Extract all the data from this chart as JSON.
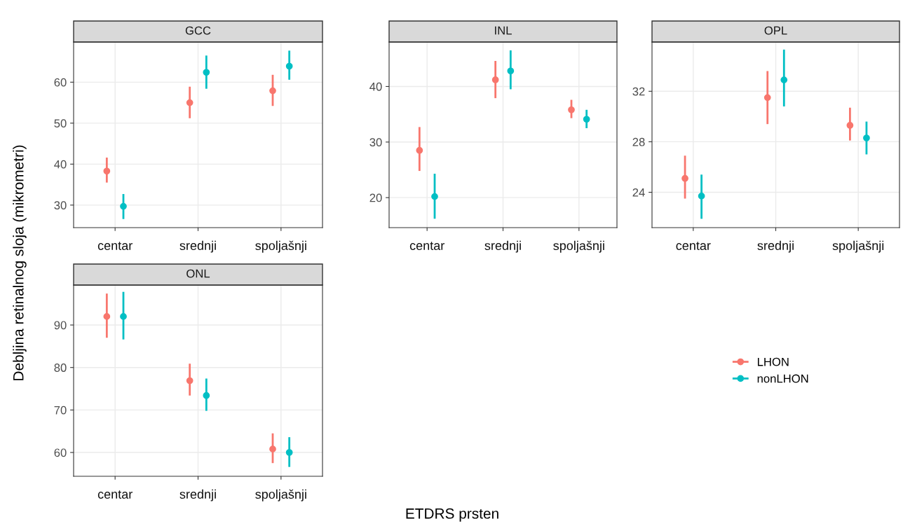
{
  "chart_data": [
    {
      "type": "scatter",
      "title": "GCC",
      "ylabel": "Debljina retinalnog sloja (mikrometri)",
      "categories": [
        "centar",
        "srednji",
        "spoljašnji"
      ],
      "ylim": [
        24.5,
        69.8
      ],
      "yticks": [
        30,
        40,
        50,
        60
      ],
      "grid": true,
      "marker": "circle",
      "legend": "right",
      "series": [
        {
          "name": "LHON",
          "color": "#f8766d",
          "values": [
            38.3,
            55.0,
            57.9
          ],
          "errors": [
            [
              35.5,
              41.6
            ],
            [
              51.2,
              58.9
            ],
            [
              54.2,
              61.8
            ]
          ]
        },
        {
          "name": "nonLHON",
          "color": "#00bfc4",
          "values": [
            29.7,
            62.4,
            63.9
          ],
          "errors": [
            [
              26.6,
              32.7
            ],
            [
              58.4,
              66.5
            ],
            [
              60.6,
              67.7
            ]
          ]
        }
      ]
    },
    {
      "type": "scatter",
      "title": "INL",
      "categories": [
        "centar",
        "srednji",
        "spoljašnji"
      ],
      "ylim": [
        14.6,
        48.0
      ],
      "yticks": [
        20,
        30,
        40
      ],
      "grid": true,
      "marker": "circle",
      "series": [
        {
          "color": "#f8766d",
          "values": [
            28.5,
            41.2,
            35.8
          ],
          "errors": [
            [
              24.8,
              32.7
            ],
            [
              37.9,
              44.6
            ],
            [
              34.3,
              37.6
            ]
          ]
        },
        {
          "color": "#00bfc4",
          "values": [
            20.2,
            42.8,
            34.1
          ],
          "errors": [
            [
              16.2,
              24.3
            ],
            [
              39.5,
              46.5
            ],
            [
              32.5,
              35.8
            ]
          ]
        }
      ]
    },
    {
      "type": "scatter",
      "title": "OPL",
      "categories": [
        "centar",
        "srednji",
        "spoljašnji"
      ],
      "ylim": [
        21.2,
        35.9
      ],
      "yticks": [
        24,
        28,
        32
      ],
      "grid": true,
      "marker": "circle",
      "series": [
        {
          "color": "#f8766d",
          "values": [
            25.1,
            31.5,
            29.3
          ],
          "errors": [
            [
              23.5,
              26.9
            ],
            [
              29.4,
              33.6
            ],
            [
              28.1,
              30.7
            ]
          ]
        },
        {
          "color": "#00bfc4",
          "values": [
            23.7,
            32.9,
            28.3
          ],
          "errors": [
            [
              21.9,
              25.4
            ],
            [
              30.8,
              35.3
            ],
            [
              27.0,
              29.6
            ]
          ]
        }
      ]
    },
    {
      "type": "scatter",
      "title": "ONL",
      "xlabel": "ETDRS prsten",
      "categories": [
        "centar",
        "srednji",
        "spoljašnji"
      ],
      "ylim": [
        54.4,
        99.4
      ],
      "yticks": [
        60,
        70,
        80,
        90
      ],
      "grid": true,
      "marker": "circle",
      "series": [
        {
          "color": "#f8766d",
          "values": [
            92.0,
            76.9,
            60.8
          ],
          "errors": [
            [
              87.0,
              97.4
            ],
            [
              73.4,
              80.9
            ],
            [
              57.5,
              64.5
            ]
          ]
        },
        {
          "color": "#00bfc4",
          "values": [
            92.0,
            73.4,
            60.0
          ],
          "errors": [
            [
              86.6,
              97.8
            ],
            [
              69.8,
              77.4
            ],
            [
              56.6,
              63.6
            ]
          ]
        }
      ]
    }
  ]
}
